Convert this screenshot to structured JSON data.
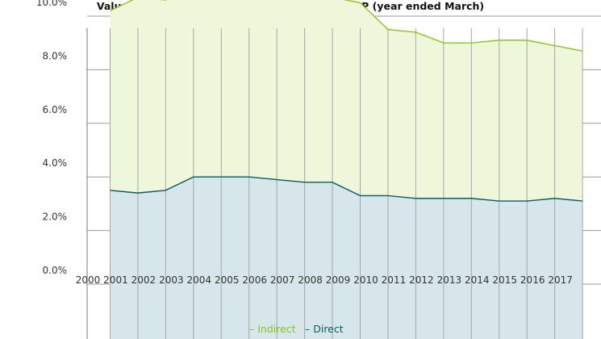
{
  "chart_data": {
    "type": "area",
    "title": "Value added by tourism as a percentage of GDP (year ended March)",
    "xlabel": "",
    "ylabel": "",
    "y_tick_labels": [
      "0.0%",
      "2.0%",
      "4.0%",
      "6.0%",
      "8.0%",
      "10.0%"
    ],
    "x_tick_labels": [
      "2000",
      "2001",
      "2002",
      "2003",
      "2004",
      "2005",
      "2006",
      "2007",
      "2008",
      "2009",
      "2010",
      "2011",
      "2012",
      "2013",
      "2014",
      "2015",
      "2016",
      "2017"
    ],
    "x": [
      2001,
      2002,
      2003,
      2004,
      2005,
      2006,
      2007,
      2008,
      2009,
      2010,
      2011,
      2012,
      2013,
      2014,
      2015,
      2016,
      2017,
      2018
    ],
    "stacked": true,
    "grid": true,
    "legend_position": "bottom",
    "series": [
      {
        "name": "Direct",
        "color": "#0b5b62",
        "fill": "#d6e6ea",
        "values": [
          3.5,
          3.4,
          3.5,
          4.0,
          4.0,
          4.0,
          3.9,
          3.8,
          3.8,
          3.3,
          3.3,
          3.2,
          3.2,
          3.2,
          3.1,
          3.1,
          3.2,
          3.1
        ]
      },
      {
        "name": "Indirect",
        "color": "#8dc41c",
        "fill": "#eef7da",
        "values": [
          6.7,
          7.3,
          7.1,
          7.3,
          7.0,
          6.8,
          6.9,
          6.9,
          6.9,
          7.2,
          6.2,
          6.2,
          5.8,
          5.8,
          6.0,
          6.0,
          5.7,
          5.6
        ]
      }
    ]
  }
}
